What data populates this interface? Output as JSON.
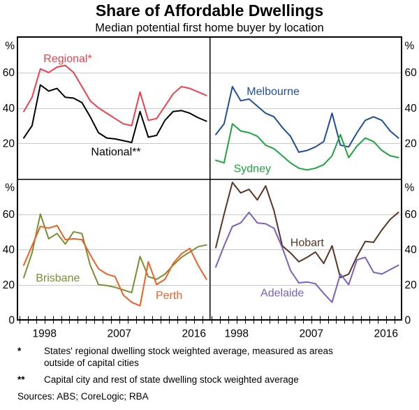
{
  "title": "Share of Affordable Dwellings",
  "subtitle": "Median potential first home buyer by location",
  "footnotes": [
    {
      "marker": "*",
      "text": "States' regional dwelling stock weighted average, measured as areas outside of capital cities"
    },
    {
      "marker": "**",
      "text": "Capital city and rest of state dwelling stock weighted average"
    }
  ],
  "sources": "Sources: ABS; CoreLogic; RBA",
  "chart_data": {
    "type": "line",
    "unit": "%",
    "x_range": [
      1994.74,
      2017.87
    ],
    "y_range": [
      0,
      80
    ],
    "y_gridlines": [
      20,
      40,
      60
    ],
    "x_tick_years": [
      1998,
      2007,
      2016
    ],
    "x_minor_tick_step": 1,
    "grid_color": "#c8c8c8",
    "frame_color": "#000000",
    "y_axis": {
      "unit": "%",
      "top_row_labels": [
        60,
        40,
        20
      ],
      "bottom_row_labels": [
        60,
        40,
        20,
        0
      ]
    },
    "panels": [
      {
        "position": "top-left"
      },
      {
        "position": "top-right"
      },
      {
        "position": "bottom-left"
      },
      {
        "position": "bottom-right"
      }
    ],
    "years": [
      1995.5,
      1996.5,
      1997.5,
      1998.5,
      1999.5,
      2000.5,
      2001.5,
      2002.5,
      2003.5,
      2004.5,
      2005.5,
      2006.5,
      2007.5,
      2008.5,
      2009.5,
      2010.5,
      2011.5,
      2012.5,
      2013.5,
      2014.5,
      2015.5,
      2016.5,
      2017.5
    ],
    "series": [
      {
        "name": "Regional*",
        "panel": 0,
        "color": "#ef404d",
        "values": [
          38,
          46,
          62,
          60,
          63,
          64,
          60,
          52,
          44,
          40,
          37,
          34,
          31,
          30,
          49,
          33,
          34,
          41,
          48,
          52,
          51,
          49,
          47
        ],
        "label": {
          "x": 2000.8,
          "y": 68
        }
      },
      {
        "name": "National**",
        "panel": 0,
        "color": "#000000",
        "values": [
          23,
          30,
          53,
          49.5,
          51,
          46,
          45.5,
          43,
          35,
          26,
          23,
          22.5,
          21.5,
          20.5,
          38,
          23.5,
          24.5,
          33,
          38,
          38.5,
          37,
          34.5,
          32.5
        ],
        "label": {
          "x": 2006.6,
          "y": 15.5
        }
      },
      {
        "name": "Melbourne",
        "panel": 1,
        "color": "#1e4ea3",
        "values": [
          25,
          31,
          52,
          44,
          45,
          41,
          37,
          35,
          29,
          24,
          15,
          16,
          18,
          21,
          37,
          19,
          18,
          26,
          33,
          35,
          33,
          27,
          23
        ],
        "label": {
          "x": 2002.4,
          "y": 49.5
        }
      },
      {
        "name": "Sydney",
        "panel": 1,
        "color": "#1ea53e",
        "values": [
          10.5,
          9,
          31,
          27,
          26,
          24,
          19,
          17,
          13,
          9,
          6,
          5,
          6,
          8,
          13,
          25,
          12,
          18.5,
          23,
          21,
          16,
          13,
          12
        ],
        "label": {
          "x": 1999.9,
          "y": 6
        }
      },
      {
        "name": "Brisbane",
        "panel": 2,
        "color": "#7e8c33",
        "values": [
          24,
          38,
          60,
          46,
          49,
          43,
          50,
          49,
          31,
          20,
          19.5,
          18.5,
          17,
          15.5,
          36,
          24.5,
          23,
          26,
          31,
          35.5,
          38.5,
          41.5,
          42.5
        ],
        "label": {
          "x": 1999.6,
          "y": 24
        }
      },
      {
        "name": "Perth",
        "panel": 2,
        "color": "#ee6023",
        "values": [
          31,
          42,
          53,
          52,
          53.5,
          45.5,
          46,
          45.5,
          37,
          29,
          26,
          24.5,
          14,
          10,
          8,
          33,
          20,
          23,
          32,
          37.5,
          40.5,
          31,
          23
        ],
        "label": {
          "x": 2013.0,
          "y": 14
        }
      },
      {
        "name": "Hobart",
        "panel": 3,
        "color": "#5c3423",
        "values": [
          41,
          60,
          78,
          72,
          74,
          68,
          76,
          62,
          42,
          38,
          33,
          35.5,
          38.5,
          32,
          42,
          24,
          26,
          36,
          44.5,
          44,
          51,
          57,
          61
        ],
        "label": {
          "x": 2006.5,
          "y": 44
        }
      },
      {
        "name": "Adelaide",
        "panel": 3,
        "color": "#7b5fc3",
        "values": [
          30,
          42,
          53,
          55,
          61,
          55,
          54.5,
          52,
          41,
          28,
          21,
          21.5,
          20.5,
          15,
          10,
          26,
          20,
          34,
          35.5,
          27,
          26,
          28.5,
          31
        ],
        "label": {
          "x": 2003.5,
          "y": 15.5
        }
      }
    ]
  }
}
